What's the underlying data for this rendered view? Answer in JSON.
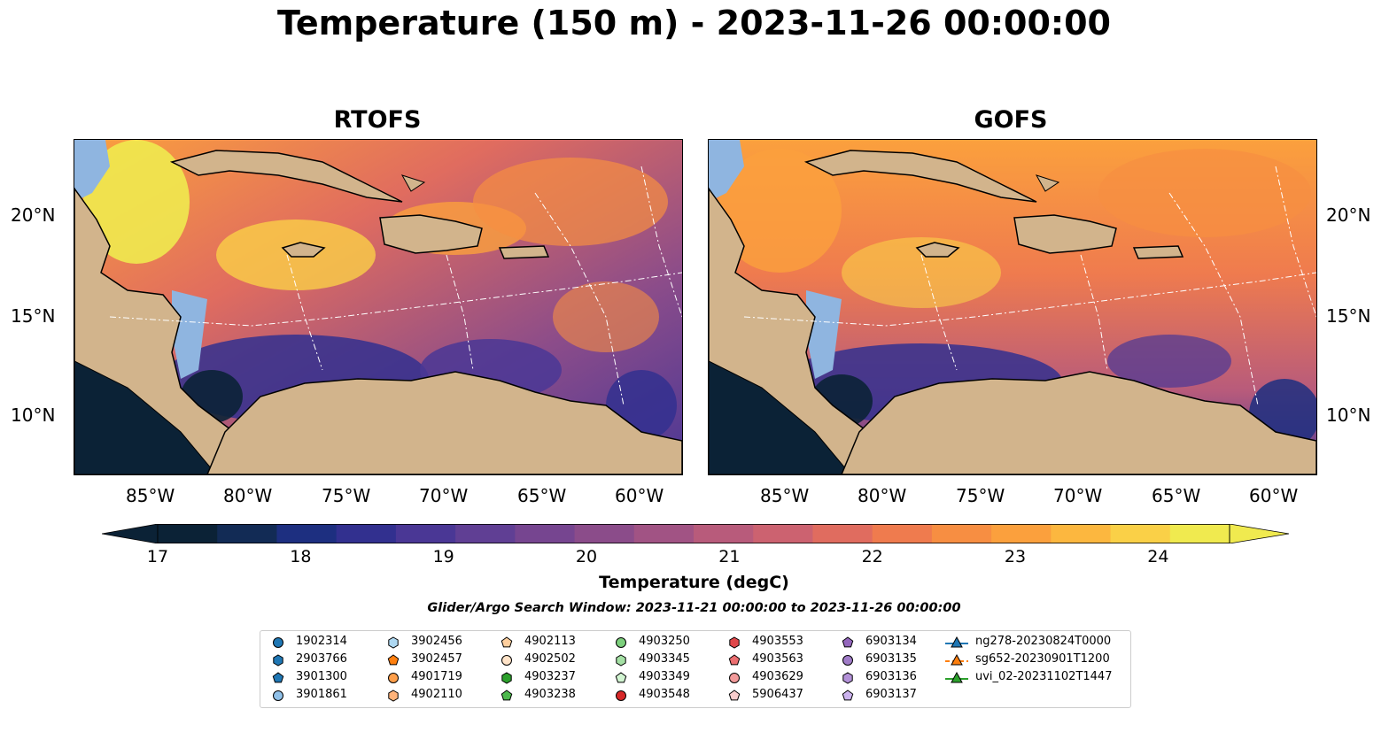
{
  "title": "Temperature (150 m) - 2023-11-26 00:00:00",
  "panels": [
    {
      "id": "rtofs",
      "title": "RTOFS"
    },
    {
      "id": "gofs",
      "title": "GOFS"
    }
  ],
  "lat_labels": [
    "20°N",
    "15°N",
    "10°N"
  ],
  "lon_labels": [
    "85°W",
    "80°W",
    "75°W",
    "70°W",
    "65°W",
    "60°W"
  ],
  "map_extent": {
    "lon": [
      -89,
      -58
    ],
    "lat": [
      7,
      24
    ]
  },
  "colorbar": {
    "label": "Temperature (degC)",
    "ticks": [
      "17",
      "18",
      "19",
      "20",
      "21",
      "22",
      "23",
      "24"
    ],
    "range": [
      17,
      24.5
    ],
    "colors": [
      "#0b2236",
      "#122b55",
      "#1d2f80",
      "#32308f",
      "#4a3795",
      "#603f94",
      "#764590",
      "#8b4c8a",
      "#a15384",
      "#b85b7b",
      "#cc6270",
      "#e06c5f",
      "#ef7b4e",
      "#f78e42",
      "#fba03d",
      "#fcb73f",
      "#fad047",
      "#f0ea4f"
    ]
  },
  "search_window": "Glider/Argo Search Window: 2023-11-21 00:00:00 to 2023-11-26 00:00:00",
  "legend": {
    "columns": [
      [
        {
          "label": "1902314",
          "marker": "circle",
          "color": "#1f77b4"
        },
        {
          "label": "2903766",
          "marker": "hexagon",
          "color": "#1f77b4"
        },
        {
          "label": "3901300",
          "marker": "pentagon",
          "color": "#1f77b4"
        },
        {
          "label": "3901861",
          "marker": "circle",
          "color": "#8fc0e8"
        }
      ],
      [
        {
          "label": "3902456",
          "marker": "hexagon",
          "color": "#aed8f2"
        },
        {
          "label": "3902457",
          "marker": "pentagon",
          "color": "#ff7f0e"
        },
        {
          "label": "4901719",
          "marker": "circle",
          "color": "#ff9f4a"
        },
        {
          "label": "4902110",
          "marker": "hexagon",
          "color": "#ffb37a"
        }
      ],
      [
        {
          "label": "4902113",
          "marker": "pentagon",
          "color": "#ffcf9e"
        },
        {
          "label": "4902502",
          "marker": "circle",
          "color": "#ffe3c8"
        },
        {
          "label": "4903237",
          "marker": "hexagon",
          "color": "#2ca02c"
        },
        {
          "label": "4903238",
          "marker": "pentagon",
          "color": "#4cb84c"
        }
      ],
      [
        {
          "label": "4903250",
          "marker": "circle",
          "color": "#7ccf7c"
        },
        {
          "label": "4903345",
          "marker": "hexagon",
          "color": "#a4e0a4"
        },
        {
          "label": "4903349",
          "marker": "pentagon",
          "color": "#d2f5d2"
        },
        {
          "label": "4903548",
          "marker": "circle",
          "color": "#d62728"
        }
      ],
      [
        {
          "label": "4903553",
          "marker": "hexagon",
          "color": "#e0474a"
        },
        {
          "label": "4903563",
          "marker": "pentagon",
          "color": "#ec6e70"
        },
        {
          "label": "4903629",
          "marker": "circle",
          "color": "#f29a9a"
        },
        {
          "label": "5906437",
          "marker": "pentagon",
          "color": "#f9cccc"
        }
      ],
      [
        {
          "label": "6903134",
          "marker": "pentagon",
          "color": "#9467bd"
        },
        {
          "label": "6903135",
          "marker": "circle",
          "color": "#a07cc8"
        },
        {
          "label": "6903136",
          "marker": "hexagon",
          "color": "#b391d8"
        },
        {
          "label": "6903137",
          "marker": "pentagon",
          "color": "#ccb3ee"
        }
      ]
    ],
    "gliders": [
      {
        "label": "ng278-20230824T0000",
        "color": "#1f77b4"
      },
      {
        "label": "sg652-20230901T1200",
        "color": "#ff7f0e"
      },
      {
        "label": "uvi_02-20231102T1447",
        "color": "#2ca02c"
      }
    ]
  }
}
